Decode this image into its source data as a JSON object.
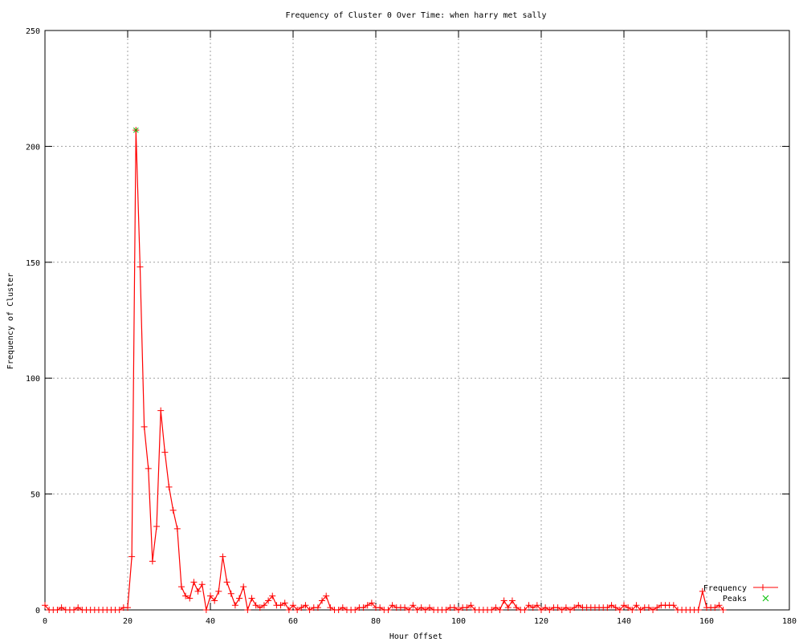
{
  "chart_data": {
    "type": "line",
    "title": "Frequency of Cluster 0 Over Time: when harry met sally",
    "xlabel": "Hour Offset",
    "ylabel": "Frequency of Cluster",
    "xlim": [
      0,
      180
    ],
    "ylim": [
      0,
      250
    ],
    "xticks": [
      0,
      20,
      40,
      60,
      80,
      100,
      120,
      140,
      160,
      180
    ],
    "yticks": [
      0,
      50,
      100,
      150,
      200,
      250
    ],
    "grid": true,
    "legend_position": "bottom-right",
    "series": [
      {
        "name": "Frequency",
        "color": "#ff0000",
        "marker": "plus",
        "x_start": 0,
        "x_step": 1,
        "values": [
          2,
          0,
          0,
          0,
          1,
          0,
          0,
          0,
          1,
          0,
          0,
          0,
          0,
          0,
          0,
          0,
          0,
          0,
          0,
          1,
          1,
          23,
          207,
          148,
          79,
          61,
          21,
          36,
          86,
          68,
          53,
          43,
          35,
          10,
          6,
          5,
          12,
          8,
          11,
          0,
          6,
          4,
          8,
          23,
          12,
          7,
          2,
          5,
          10,
          0,
          5,
          2,
          1,
          2,
          4,
          6,
          2,
          2,
          3,
          0,
          2,
          0,
          1,
          2,
          0,
          1,
          1,
          4,
          6,
          1,
          0,
          0,
          1,
          0,
          0,
          0,
          1,
          1,
          2,
          3,
          1,
          1,
          0,
          0,
          2,
          1,
          1,
          1,
          0,
          2,
          0,
          1,
          0,
          1,
          0,
          0,
          0,
          0,
          1,
          1,
          0,
          1,
          1,
          2,
          0,
          0,
          0,
          0,
          0,
          1,
          0,
          4,
          1,
          4,
          1,
          0,
          0,
          2,
          1,
          2,
          0,
          1,
          0,
          1,
          1,
          0,
          1,
          0,
          1,
          2,
          1,
          1,
          1,
          1,
          1,
          1,
          1,
          2,
          1,
          0,
          2,
          1,
          0,
          2,
          0,
          1,
          1,
          0,
          1,
          2,
          2,
          2,
          2,
          0,
          0,
          0,
          0,
          0,
          0,
          8,
          1,
          1,
          1,
          2,
          0
        ]
      },
      {
        "name": "Peaks",
        "color": "#00c000",
        "marker": "cross",
        "points": [
          [
            22,
            207
          ]
        ]
      }
    ]
  }
}
